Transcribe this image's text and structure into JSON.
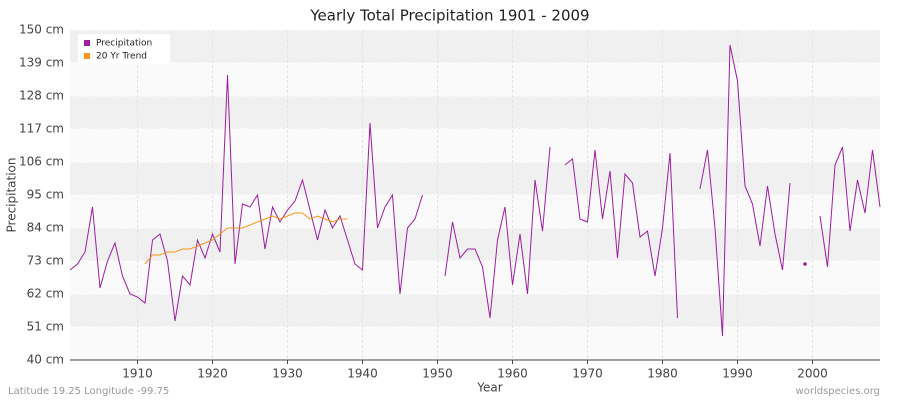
{
  "chart_data": {
    "type": "line",
    "title": "Yearly Total Precipitation 1901 - 2009",
    "x_label": "Year",
    "y_label": "Precipitation",
    "footer_left": "Latitude 19.25 Longitude -99.75",
    "footer_right": "worldspecies.org",
    "legend_position": "upper left",
    "grid": true,
    "xlim": [
      1901,
      2009
    ],
    "xticks": [
      1910,
      1920,
      1930,
      1940,
      1950,
      1960,
      1970,
      1980,
      1990,
      2000
    ],
    "ylim": [
      40,
      150
    ],
    "yticks": [
      {
        "value": 40,
        "label": "40 cm"
      },
      {
        "value": 51,
        "label": "51 cm"
      },
      {
        "value": 62,
        "label": "62 cm"
      },
      {
        "value": 73,
        "label": "73 cm"
      },
      {
        "value": 84,
        "label": "84 cm"
      },
      {
        "value": 95,
        "label": "95 cm"
      },
      {
        "value": 106,
        "label": "106 cm"
      },
      {
        "value": 117,
        "label": "117 cm"
      },
      {
        "value": 128,
        "label": "128 cm"
      },
      {
        "value": 139,
        "label": "139 cm"
      },
      {
        "value": 150,
        "label": "150 cm"
      }
    ],
    "x": [
      1901,
      1902,
      1903,
      1904,
      1905,
      1906,
      1907,
      1908,
      1909,
      1910,
      1911,
      1912,
      1913,
      1914,
      1915,
      1916,
      1917,
      1918,
      1919,
      1920,
      1921,
      1922,
      1923,
      1924,
      1925,
      1926,
      1927,
      1928,
      1929,
      1930,
      1931,
      1932,
      1933,
      1934,
      1935,
      1936,
      1937,
      1938,
      1939,
      1940,
      1941,
      1942,
      1943,
      1944,
      1945,
      1946,
      1947,
      1948,
      1949,
      1950,
      1951,
      1952,
      1953,
      1954,
      1955,
      1956,
      1957,
      1958,
      1959,
      1960,
      1961,
      1962,
      1963,
      1964,
      1965,
      1966,
      1967,
      1968,
      1969,
      1970,
      1971,
      1972,
      1973,
      1974,
      1975,
      1976,
      1977,
      1978,
      1979,
      1980,
      1981,
      1982,
      1983,
      1984,
      1985,
      1986,
      1987,
      1988,
      1989,
      1990,
      1991,
      1992,
      1993,
      1994,
      1995,
      1996,
      1997,
      1998,
      1999,
      2000,
      2001,
      2002,
      2003,
      2004,
      2005,
      2006,
      2007,
      2008,
      2009
    ],
    "series": [
      {
        "name": "Precipitation",
        "color": "#9b1fa0",
        "values": [
          70,
          72,
          76,
          91,
          64,
          73,
          79,
          68,
          62,
          61,
          59,
          80,
          82,
          73,
          53,
          68,
          65,
          80,
          74,
          82,
          76,
          135,
          72,
          92,
          91,
          95,
          77,
          91,
          86,
          90,
          93,
          100,
          90,
          80,
          90,
          84,
          88,
          80,
          72,
          70,
          119,
          84,
          91,
          95,
          62,
          84,
          87,
          95,
          null,
          null,
          68,
          86,
          74,
          77,
          77,
          71,
          54,
          80,
          91,
          65,
          82,
          62,
          100,
          83,
          111,
          null,
          105,
          107,
          87,
          86,
          110,
          87,
          103,
          74,
          102,
          99,
          81,
          83,
          68,
          84,
          109,
          54,
          null,
          null,
          97,
          110,
          84,
          48,
          145,
          133,
          98,
          92,
          78,
          98,
          82,
          70,
          99,
          null,
          72,
          null,
          88,
          71,
          105,
          111,
          83,
          100,
          89,
          110,
          91
        ]
      },
      {
        "name": "20 Yr Trend",
        "color": "#f5961e",
        "values": [
          null,
          null,
          null,
          null,
          null,
          null,
          null,
          null,
          null,
          null,
          72,
          75,
          75,
          76,
          76,
          77,
          77,
          78,
          79,
          80,
          82,
          84,
          84,
          84,
          85,
          86,
          87,
          88,
          87,
          88,
          89,
          89,
          87,
          88,
          87,
          86,
          87,
          87,
          null,
          null,
          null,
          null,
          null,
          null,
          null,
          null,
          null,
          null,
          null,
          null,
          null,
          null,
          null,
          null,
          null,
          null,
          null,
          null,
          null,
          null,
          null,
          null,
          null,
          null,
          null,
          null,
          null,
          null,
          null,
          null,
          null,
          null,
          null,
          null,
          null,
          null,
          null,
          null,
          null,
          null,
          null,
          null,
          null,
          null,
          null,
          null,
          null,
          null,
          null,
          null,
          null,
          null,
          null,
          null,
          null,
          null,
          null,
          null,
          null,
          null,
          null,
          null,
          null,
          null,
          null,
          null,
          null,
          null,
          null
        ]
      }
    ]
  }
}
